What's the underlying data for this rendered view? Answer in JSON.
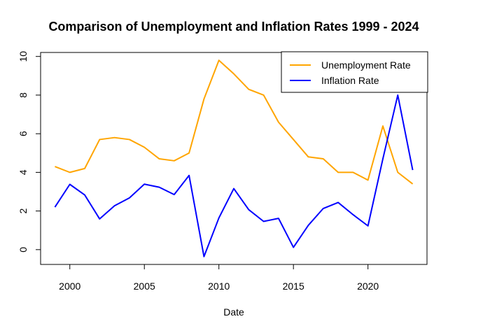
{
  "chart_data": {
    "type": "line",
    "title": "Comparison of Unemployment and Inflation Rates 1999 - 2024",
    "xlabel": "Date",
    "ylabel": "",
    "x": [
      1999,
      2000,
      2001,
      2002,
      2003,
      2004,
      2005,
      2006,
      2007,
      2008,
      2009,
      2010,
      2011,
      2012,
      2013,
      2014,
      2015,
      2016,
      2017,
      2018,
      2019,
      2020,
      2021,
      2022,
      2023
    ],
    "series": [
      {
        "name": "Unemployment Rate",
        "color": "#FFA500",
        "values": [
          4.3,
          4.0,
          4.2,
          5.7,
          5.8,
          5.7,
          5.3,
          4.7,
          4.6,
          5.0,
          7.8,
          9.8,
          9.1,
          8.3,
          8.0,
          6.6,
          5.7,
          4.8,
          4.7,
          4.0,
          4.0,
          3.6,
          6.4,
          4.0,
          3.4
        ]
      },
      {
        "name": "Inflation Rate",
        "color": "#0000FF",
        "values": [
          2.2,
          3.38,
          2.83,
          1.59,
          2.27,
          2.68,
          3.39,
          3.23,
          2.85,
          3.84,
          -0.36,
          1.64,
          3.16,
          2.07,
          1.46,
          1.62,
          0.12,
          1.26,
          2.13,
          2.44,
          1.81,
          1.23,
          4.7,
          8.0,
          4.12
        ]
      }
    ],
    "xlim": [
      1999,
      2023
    ],
    "ylim": [
      -0.36,
      9.8
    ],
    "xticks": [
      2000,
      2005,
      2010,
      2015,
      2020
    ],
    "yticks": [
      0,
      2,
      4,
      6,
      8,
      10
    ],
    "grid": false,
    "legend_position": "top-right"
  }
}
